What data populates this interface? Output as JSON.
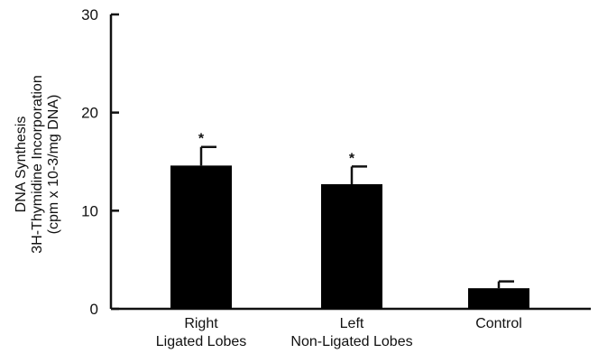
{
  "chart_data": {
    "type": "bar",
    "ylabel": [
      "DNA Synthesis",
      "3H-Thymidine Incorporation",
      "(cpm x 10-3/mg DNA)"
    ],
    "ylim": [
      0,
      30
    ],
    "yticks": [
      0,
      10,
      20,
      30
    ],
    "categories": [
      [
        "Right",
        "Ligated Lobes"
      ],
      [
        "Left",
        "Non-Ligated Lobes"
      ],
      [
        "Control"
      ]
    ],
    "values": [
      14.6,
      12.7,
      2.1
    ],
    "errors": [
      1.9,
      1.8,
      0.7
    ],
    "significance": [
      "*",
      "*",
      ""
    ],
    "bar_color": "#000000",
    "grid": false
  }
}
